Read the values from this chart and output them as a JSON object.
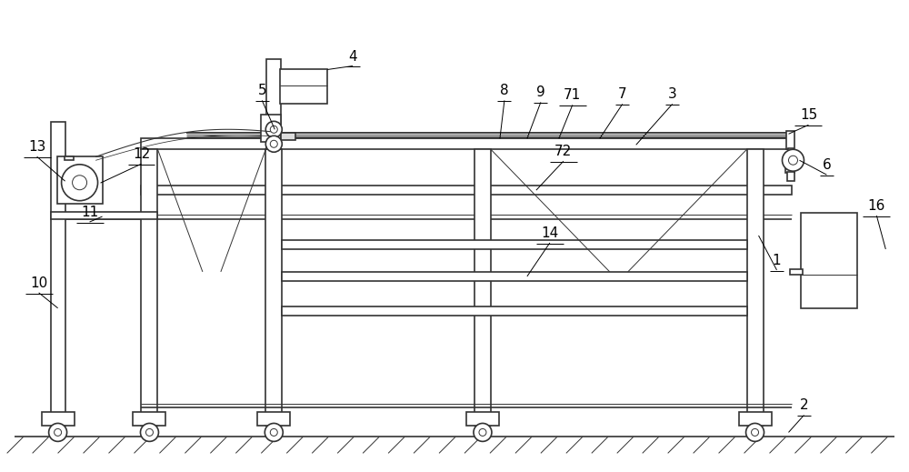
{
  "bg_color": "#ffffff",
  "line_color": "#333333",
  "lw": 1.2,
  "tlw": 0.7,
  "fig_width": 10.0,
  "fig_height": 5.19,
  "xlim": [
    0,
    10
  ],
  "ylim": [
    0,
    5.19
  ]
}
